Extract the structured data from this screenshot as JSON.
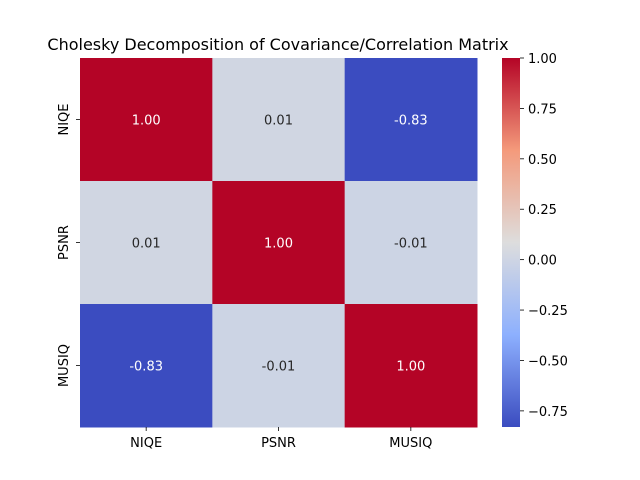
{
  "chart_data": {
    "type": "heatmap",
    "title": "Cholesky Decomposition of Covariance/Correlation Matrix",
    "xlabel": "",
    "ylabel": "",
    "x_categories": [
      "NIQE",
      "PSNR",
      "MUSIQ"
    ],
    "y_categories": [
      "NIQE",
      "PSNR",
      "MUSIQ"
    ],
    "values": [
      [
        1.0,
        0.01,
        -0.83
      ],
      [
        0.01,
        1.0,
        -0.01
      ],
      [
        -0.83,
        -0.01,
        1.0
      ]
    ],
    "cell_labels": [
      [
        "1.00",
        "0.01",
        "-0.83"
      ],
      [
        "0.01",
        "1.00",
        "-0.01"
      ],
      [
        "-0.83",
        "-0.01",
        "1.00"
      ]
    ],
    "colormap": "coolwarm",
    "vmin": -0.83,
    "vmax": 1.0,
    "colorbar": {
      "ticks": [
        -0.75,
        -0.5,
        -0.25,
        0.0,
        0.25,
        0.5,
        0.75,
        1.0
      ],
      "tick_labels": [
        "−0.75",
        "−0.50",
        "−0.25",
        "0.00",
        "0.25",
        "0.50",
        "0.75",
        "1.00"
      ]
    },
    "grid": false
  }
}
